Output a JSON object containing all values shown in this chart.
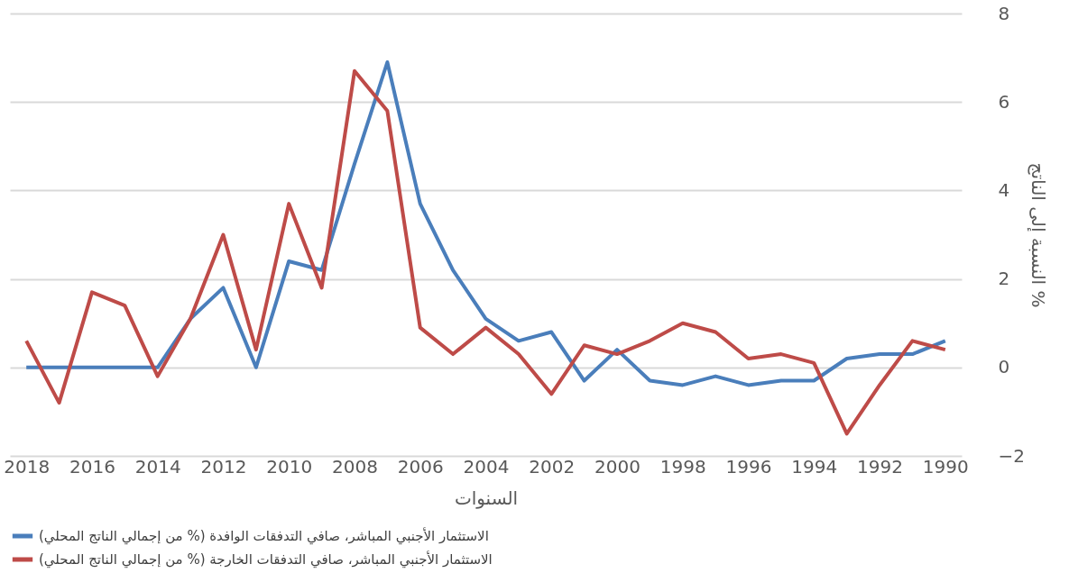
{
  "chart_data": {
    "type": "line",
    "xlabel": "السنوات",
    "ylabel": "النسبة إلى الناتج %",
    "x": [
      2018,
      2017,
      2016,
      2015,
      2014,
      2013,
      2012,
      2011,
      2010,
      2009,
      2008,
      2007,
      2006,
      2005,
      2004,
      2003,
      2002,
      2001,
      2000,
      1999,
      1998,
      1997,
      1996,
      1995,
      1994,
      1993,
      1992,
      1991,
      1990
    ],
    "series": [
      {
        "name": "الاستثمار الأجنبي المباشر، صافي التدفقات الوافدة (% من إجمالي الناتج المحلي)",
        "color": "#4a7ebb",
        "values": [
          0,
          0,
          0,
          0,
          0,
          1.1,
          1.8,
          0,
          2.4,
          2.2,
          4.6,
          6.9,
          3.7,
          2.2,
          1.1,
          0.6,
          0.8,
          -0.3,
          0.4,
          -0.3,
          -0.4,
          -0.2,
          -0.4,
          -0.3,
          -0.3,
          0.2,
          0.3,
          0.3,
          0.6
        ]
      },
      {
        "name": "الاستثمار الأجنبي المباشر، صافي التدفقات الخارجة (% من إجمالي الناتج المحلي)",
        "color": "#be4b48",
        "values": [
          0.6,
          -0.8,
          1.7,
          1.4,
          -0.2,
          1.1,
          3.0,
          0.4,
          3.7,
          1.8,
          6.7,
          5.8,
          0.9,
          0.3,
          0.9,
          0.3,
          -0.6,
          0.5,
          0.3,
          0.6,
          1.0,
          0.8,
          0.2,
          0.3,
          0.1,
          -1.5,
          -0.4,
          0.6,
          0.4
        ]
      }
    ],
    "xlim": [
      2018.5,
      1989.5
    ],
    "xticks": [
      2018,
      2016,
      2014,
      2012,
      2010,
      2008,
      2006,
      2004,
      2002,
      2000,
      1998,
      1996,
      1994,
      1992,
      1990
    ],
    "ylim": [
      -2,
      8
    ],
    "yticks": [
      -2,
      0,
      2,
      4,
      6,
      8
    ],
    "grid": "y",
    "legend": "bottom",
    "marker": "none",
    "line_style": "solid"
  }
}
